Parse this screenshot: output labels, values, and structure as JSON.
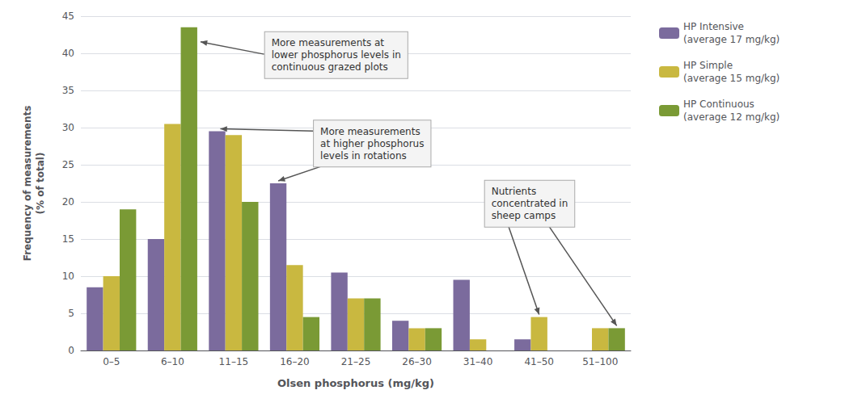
{
  "chart_data": {
    "type": "bar",
    "categories": [
      "0–5",
      "6–10",
      "11–15",
      "16–20",
      "21–25",
      "26–30",
      "31–40",
      "41–50",
      "51–100"
    ],
    "series": [
      {
        "name": "HP Intensive\n(average 17 mg/kg)",
        "color": "#7b6b9d",
        "values": [
          8.5,
          15.0,
          29.5,
          22.5,
          10.5,
          4.0,
          9.5,
          1.5,
          0.0
        ]
      },
      {
        "name": "HP Simple\n(average 15 mg/kg)",
        "color": "#c9b840",
        "values": [
          10.0,
          30.5,
          29.0,
          11.5,
          7.0,
          3.0,
          1.5,
          4.5,
          3.0
        ]
      },
      {
        "name": "HP Continuous\n(average 12 mg/kg)",
        "color": "#7a9a35",
        "values": [
          19.0,
          43.5,
          20.0,
          4.5,
          7.0,
          3.0,
          0.0,
          0.0,
          3.0
        ]
      }
    ],
    "xlabel": "Olsen phosphorus (mg/kg)",
    "ylabel": "Frequency of measurements\n(% of total)",
    "ylim": [
      0,
      45
    ],
    "yticks": [
      0,
      5,
      10,
      15,
      20,
      25,
      30,
      35,
      40,
      45
    ],
    "grid": true,
    "legend": "upper right",
    "annotations": [
      "More measurements at\nlower phosphorus levels in\ncontinuous grazed plots",
      "More measurements\nat higher phosphorus\nlevels in rotations",
      "Nutrients\nconcentrated in\nsheep camps"
    ]
  }
}
